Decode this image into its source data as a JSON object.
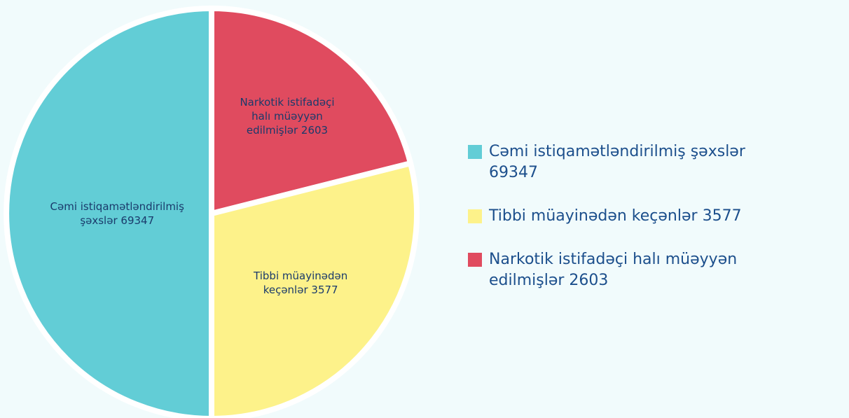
{
  "chart_data": {
    "type": "pie",
    "categories": [
      "Cəmi istiqamətləndirilmiş şəxslər",
      "Tibbi müayinədən keçənlər",
      "Narkotik istifadəçi halı müəyyən edilmişlər"
    ],
    "values": [
      69347,
      3577,
      2603
    ],
    "colors": [
      "#62cdd6",
      "#fdf28a",
      "#e04b5f"
    ],
    "legend": "right"
  }
}
